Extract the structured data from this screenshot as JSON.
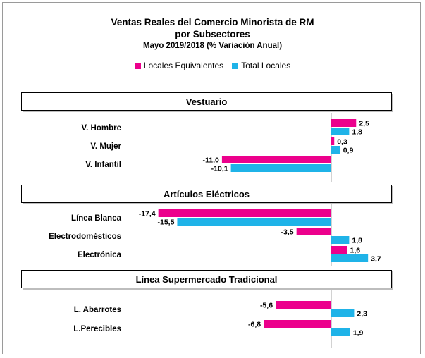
{
  "title": {
    "line1": "Ventas Reales del Comercio Minorista de RM",
    "line2": "por Subsectores",
    "line3": "Mayo 2019/2018 (% Variación Anual)"
  },
  "colors": {
    "locales_equivalentes": "#ec008c",
    "total_locales": "#1fb3e8",
    "zero_line": "#a6a6a6"
  },
  "legend": [
    {
      "name": "Locales Equivalentes",
      "color": "#ec008c"
    },
    {
      "name": "Total Locales",
      "color": "#1fb3e8"
    }
  ],
  "chart_data": {
    "type": "bar",
    "orientation": "horizontal",
    "title": "Ventas Reales del Comercio Minorista de RM por Subsectores",
    "subtitle": "Mayo 2019/2018 (% Variación Anual)",
    "legend_position": "top",
    "grid": false,
    "series_names": [
      "Locales Equivalentes",
      "Total Locales"
    ],
    "sections": [
      {
        "name": "Vestuario",
        "categories": [
          "V. Hombre",
          "V. Mujer",
          "V. Infantil"
        ],
        "series": [
          {
            "name": "Locales Equivalentes",
            "values": [
              2.5,
              0.3,
              -11.0
            ],
            "labels": [
              "2,5",
              "0,3",
              "-11,0"
            ]
          },
          {
            "name": "Total Locales",
            "values": [
              1.8,
              0.9,
              -10.1
            ],
            "labels": [
              "1,8",
              "0,9",
              "-10,1"
            ]
          }
        ]
      },
      {
        "name": "Artículos Eléctricos",
        "categories": [
          "Línea Blanca",
          "Electrodomésticos",
          "Electrónica"
        ],
        "series": [
          {
            "name": "Locales Equivalentes",
            "values": [
              -17.4,
              -3.5,
              1.6
            ],
            "labels": [
              "-17,4",
              "-3,5",
              "1,6"
            ]
          },
          {
            "name": "Total Locales",
            "values": [
              -15.5,
              1.8,
              3.7
            ],
            "labels": [
              "-15,5",
              "1,8",
              "3,7"
            ]
          }
        ]
      },
      {
        "name": "Línea Supermercado Tradicional",
        "categories": [
          "L. Abarrotes",
          "L.Perecibles"
        ],
        "series": [
          {
            "name": "Locales Equivalentes",
            "values": [
              -5.6,
              -6.8
            ],
            "labels": [
              "-5,6",
              "-6,8"
            ]
          },
          {
            "name": "Total Locales",
            "values": [
              2.3,
              1.9
            ],
            "labels": [
              "2,3",
              "1,9"
            ]
          }
        ]
      }
    ]
  }
}
